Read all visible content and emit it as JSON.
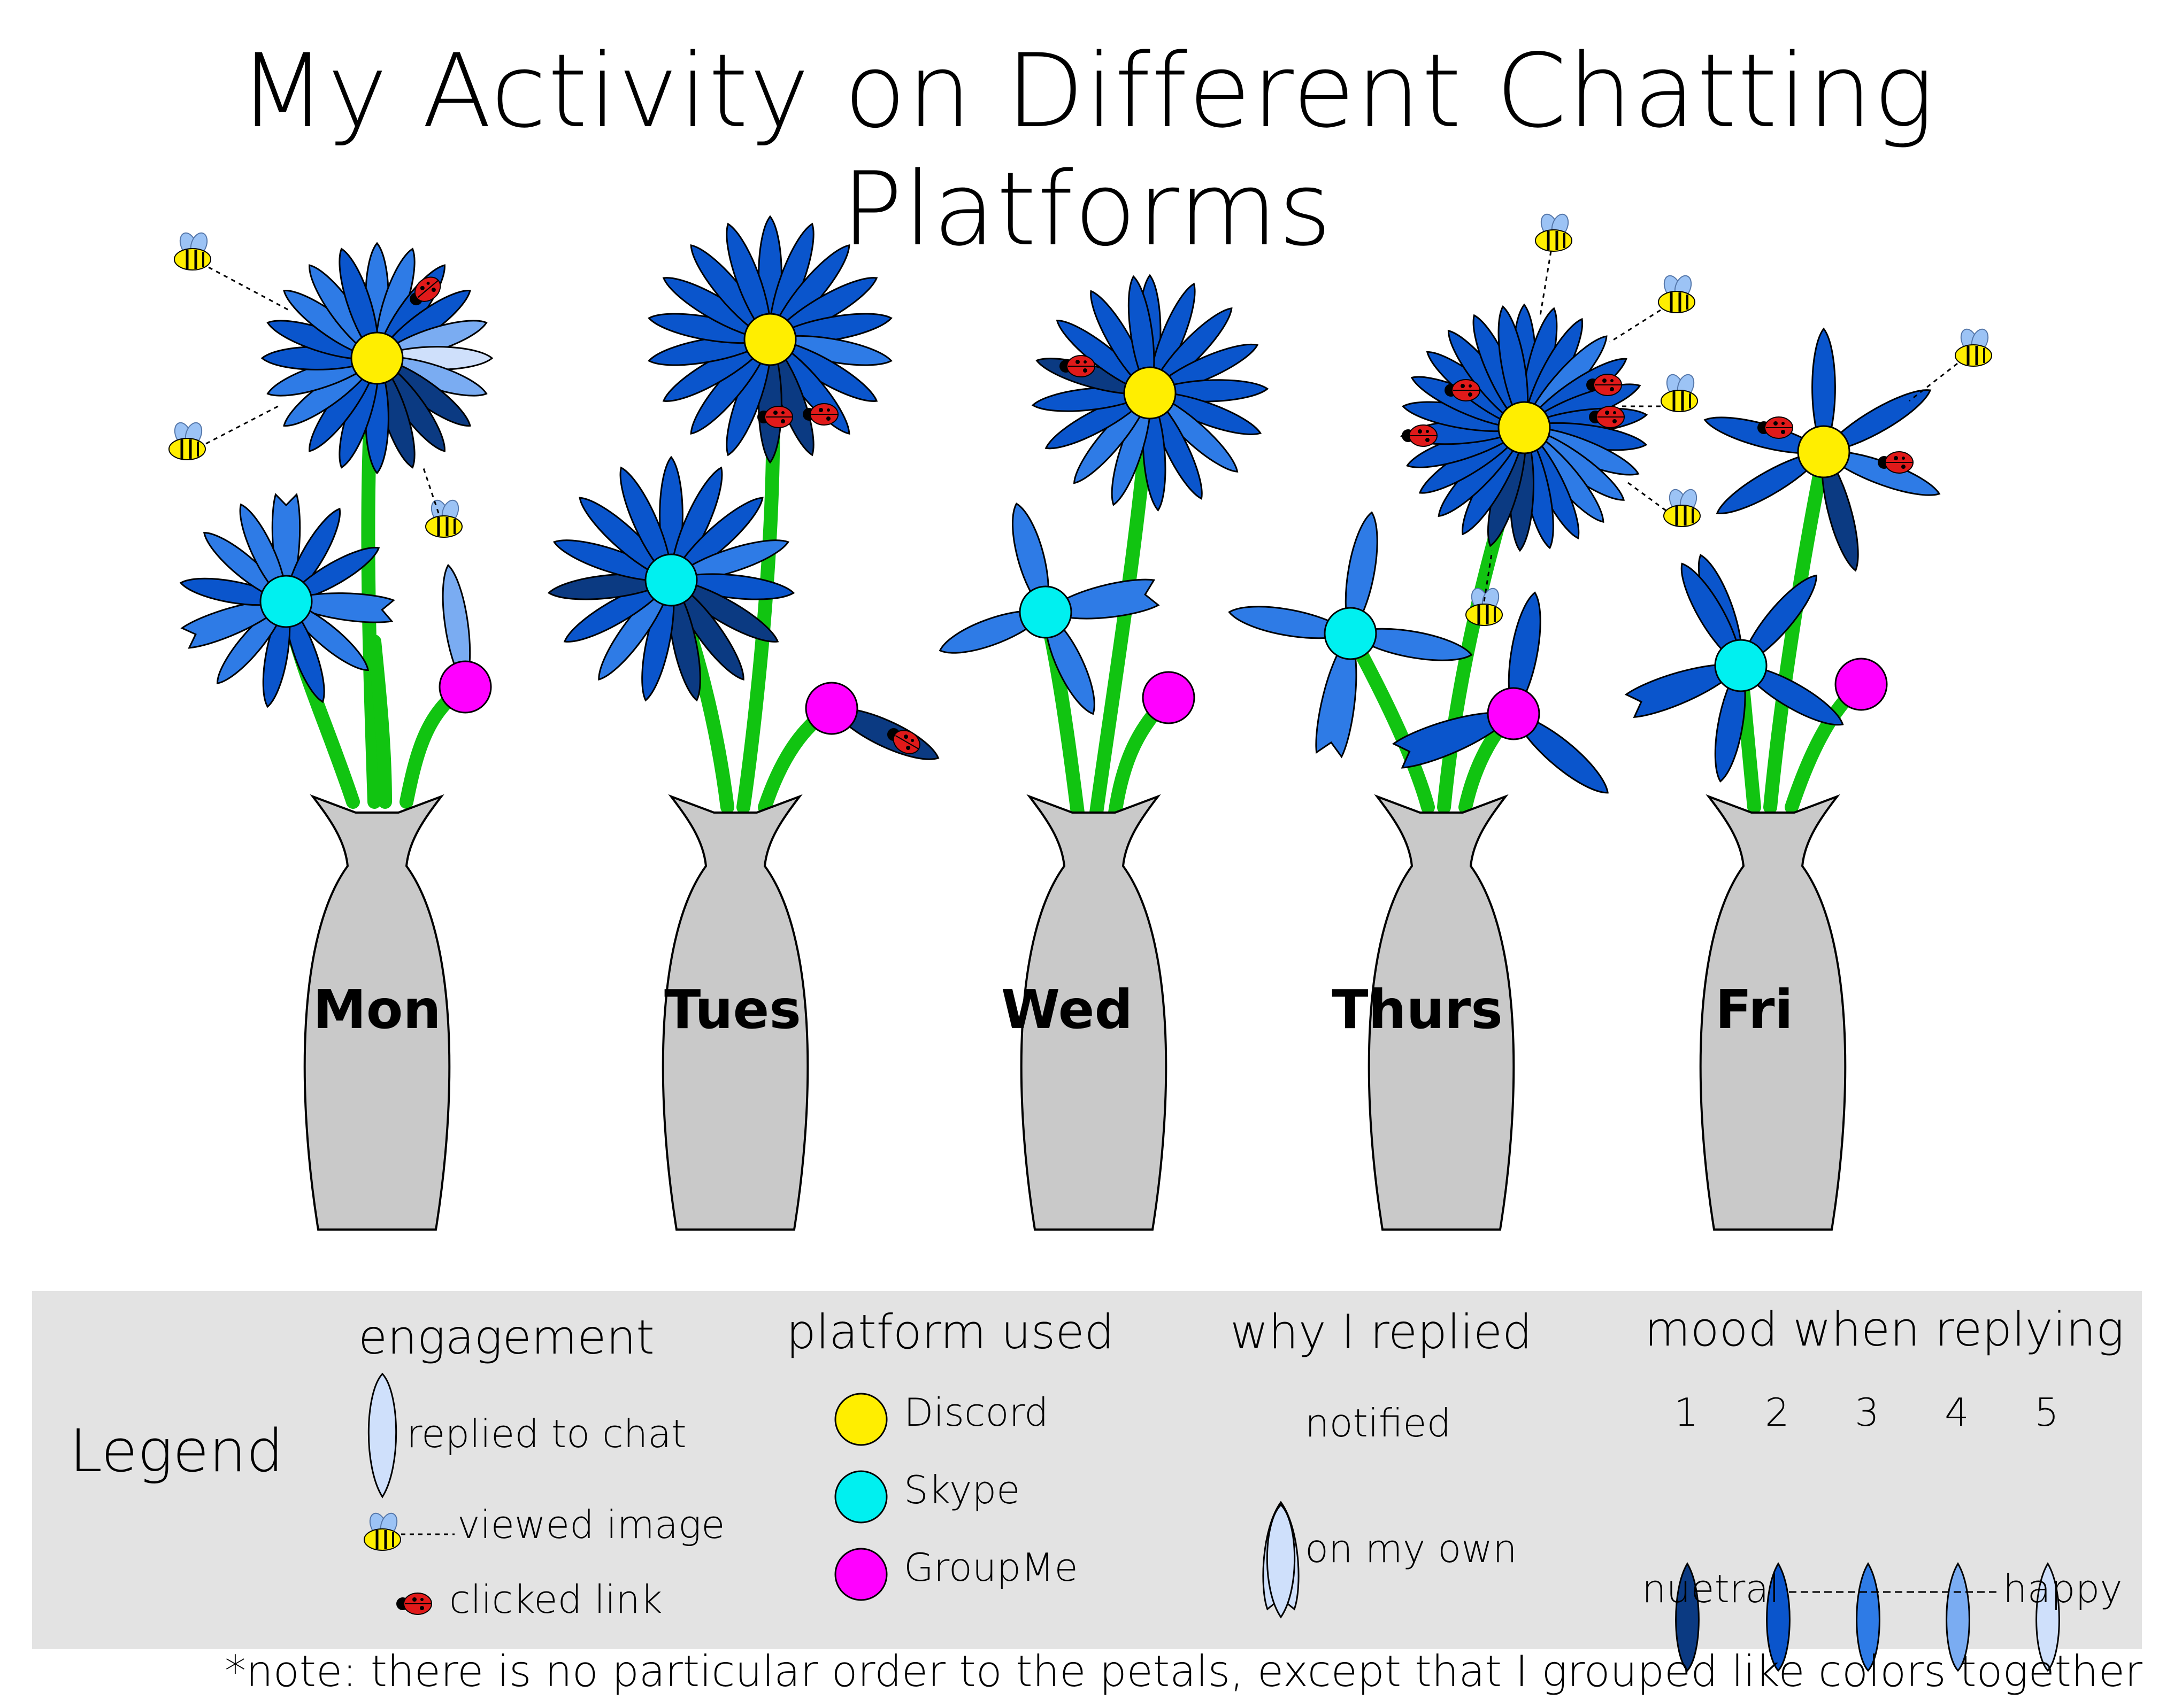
{
  "title": "My Activity on Different Chatting Platforms",
  "days": [
    {
      "label": "Mon"
    },
    {
      "label": "Tues"
    },
    {
      "label": "Wed"
    },
    {
      "label": "Thurs"
    },
    {
      "label": "Fri"
    }
  ],
  "legend": {
    "label": "Legend",
    "engagement": {
      "heading": "engagement",
      "items": [
        "replied to chat",
        "viewed image",
        "clicked link"
      ]
    },
    "platform": {
      "heading": "platform used",
      "items": [
        {
          "name": "Discord",
          "color": "#ffee00"
        },
        {
          "name": "Skype",
          "color": "#00f0f0"
        },
        {
          "name": "GroupMe",
          "color": "#ff00ff"
        }
      ]
    },
    "why": {
      "heading": "why I replied",
      "items": [
        "notified",
        "on my own"
      ]
    },
    "mood": {
      "heading": "mood when replying",
      "levels": [
        "1",
        "2",
        "3",
        "4",
        "5"
      ],
      "colors": [
        "#0b3a82",
        "#0a55cc",
        "#2e7be6",
        "#7aacf2",
        "#cfe0fb"
      ],
      "low": "nuetral",
      "high": "happy"
    }
  },
  "note": "*note: there is no particular order to the petals, except that I grouped like colors together"
}
